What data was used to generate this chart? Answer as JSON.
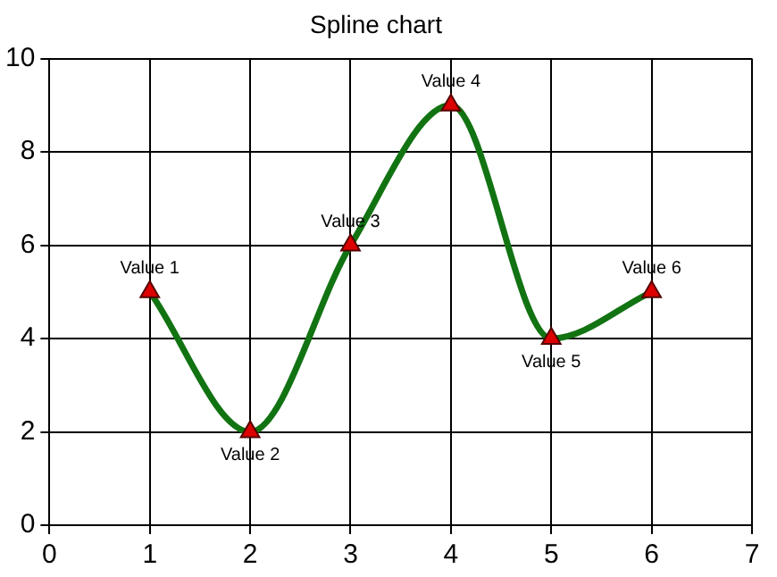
{
  "chart_data": {
    "type": "line",
    "title": "Spline chart",
    "x": [
      1,
      2,
      3,
      4,
      5,
      6
    ],
    "series": [
      {
        "color": "#127312",
        "values": [
          5,
          2,
          6,
          9,
          4,
          5
        ]
      }
    ],
    "xlim": [
      0,
      7
    ],
    "xticks": [
      0,
      1,
      2,
      3,
      4,
      5,
      6,
      7
    ],
    "ylim": [
      0,
      10
    ],
    "yticks": [
      0,
      2,
      4,
      6,
      8,
      10
    ],
    "grid": true,
    "legend": false,
    "marker": "triangle",
    "line_style": "solid",
    "annotations": [
      {
        "text": "Value 1",
        "x": 1,
        "y": 5
      },
      {
        "text": "Value 2",
        "x": 2,
        "y": 2
      },
      {
        "text": "Value 3",
        "x": 3,
        "y": 6
      },
      {
        "text": "Value 4",
        "x": 4,
        "y": 9
      },
      {
        "text": "Value 5",
        "x": 5,
        "y": 4
      },
      {
        "text": "Value 6",
        "x": 6,
        "y": 5
      }
    ]
  }
}
